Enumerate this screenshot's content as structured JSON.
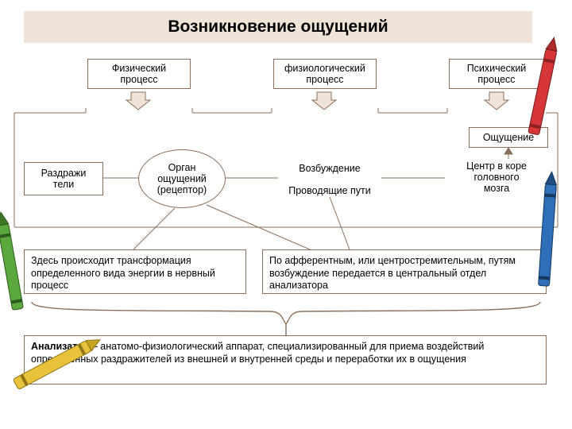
{
  "title": "Возникновение ощущений",
  "top_processes": [
    {
      "label": "Физический\nпроцесс"
    },
    {
      "label": "физиологический\nпроцесс"
    },
    {
      "label": "Психический\nпроцесс"
    }
  ],
  "sensation_label": "Ощущение",
  "flow": {
    "stimuli": "Раздражи\nтели",
    "receptor": "Орган\nощущений\n(рецептор)",
    "excitation": "Возбуждение",
    "pathways": "Проводящие пути",
    "center": "Центр в коре\nголовного\nмозга"
  },
  "desc_left": "Здесь происходит трансформация определенного вида энергии в нервный процесс",
  "desc_right": "По афферентным, или центростремительным, путям возбуждение передается в центральный отдел анализатора",
  "analyzer_term": "Анализатор",
  "analyzer_text": " – анатомо-физиологический аппарат, специализированный для приема воздействий определенных раздражителей из внешней и внутренней среды и переработки их в ощущения",
  "colors": {
    "title_bg": "#f0e4d8",
    "border": "#8b6f5a",
    "arrow_fill": "#f0e4d8",
    "text": "#000000"
  },
  "crayons": {
    "red": {
      "body": "#d63638",
      "tip": "#b02a2c"
    },
    "green": {
      "body": "#5aa83e",
      "tip": "#3d7829"
    },
    "blue": {
      "body": "#2f6fb8",
      "tip": "#204d80"
    },
    "yellow": {
      "body": "#e8c23a",
      "tip": "#c7a225"
    }
  }
}
